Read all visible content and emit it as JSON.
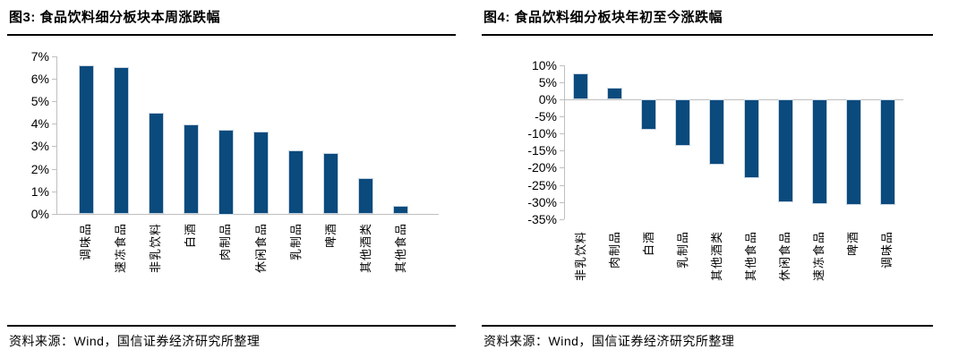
{
  "colors": {
    "bar": "#0b4a7d",
    "bar_edge": "#c7d5e2",
    "axis": "#bfbfbf",
    "rule": "#000000",
    "text": "#000000",
    "background": "#ffffff"
  },
  "chart_data": [
    {
      "type": "bar",
      "title": "图3: 食品饮料细分板块本周涨跌幅",
      "categories": [
        "调味品",
        "速冻食品",
        "非乳饮料",
        "白酒",
        "肉制品",
        "休闲食品",
        "乳制品",
        "啤酒",
        "其他酒类",
        "其他食品"
      ],
      "values": [
        6.6,
        6.5,
        4.5,
        3.95,
        3.75,
        3.65,
        2.8,
        2.7,
        1.6,
        0.35
      ],
      "unit": "%",
      "xlabel": "",
      "ylabel": "",
      "ylim": [
        0,
        7
      ],
      "ytick_step": 1,
      "ytick_labels": [
        "7%",
        "6%",
        "5%",
        "4%",
        "3%",
        "2%",
        "1%",
        "0%"
      ],
      "grid": false,
      "legend": "none"
    },
    {
      "type": "bar",
      "title": "图4: 食品饮料细分板块年初至今涨跌幅",
      "categories": [
        "非乳饮料",
        "肉制品",
        "白酒",
        "乳制品",
        "其他酒类",
        "其他食品",
        "休闲食品",
        "速冻食品",
        "啤酒",
        "调味品"
      ],
      "values": [
        7.5,
        3.5,
        -9.0,
        -13.5,
        -19.0,
        -23.0,
        -30.0,
        -30.5,
        -31.0,
        -31.0
      ],
      "unit": "%",
      "xlabel": "",
      "ylabel": "",
      "ylim": [
        -35,
        10
      ],
      "ytick_step": 5,
      "ytick_labels": [
        "10%",
        "5%",
        "0%",
        "-5%",
        "-10%",
        "-15%",
        "-20%",
        "-25%",
        "-30%",
        "-35%"
      ],
      "grid": false,
      "legend": "none"
    }
  ],
  "sources": [
    "资料来源：Wind，国信证券经济研究所整理",
    "资料来源：Wind，国信证券经济研究所整理"
  ]
}
